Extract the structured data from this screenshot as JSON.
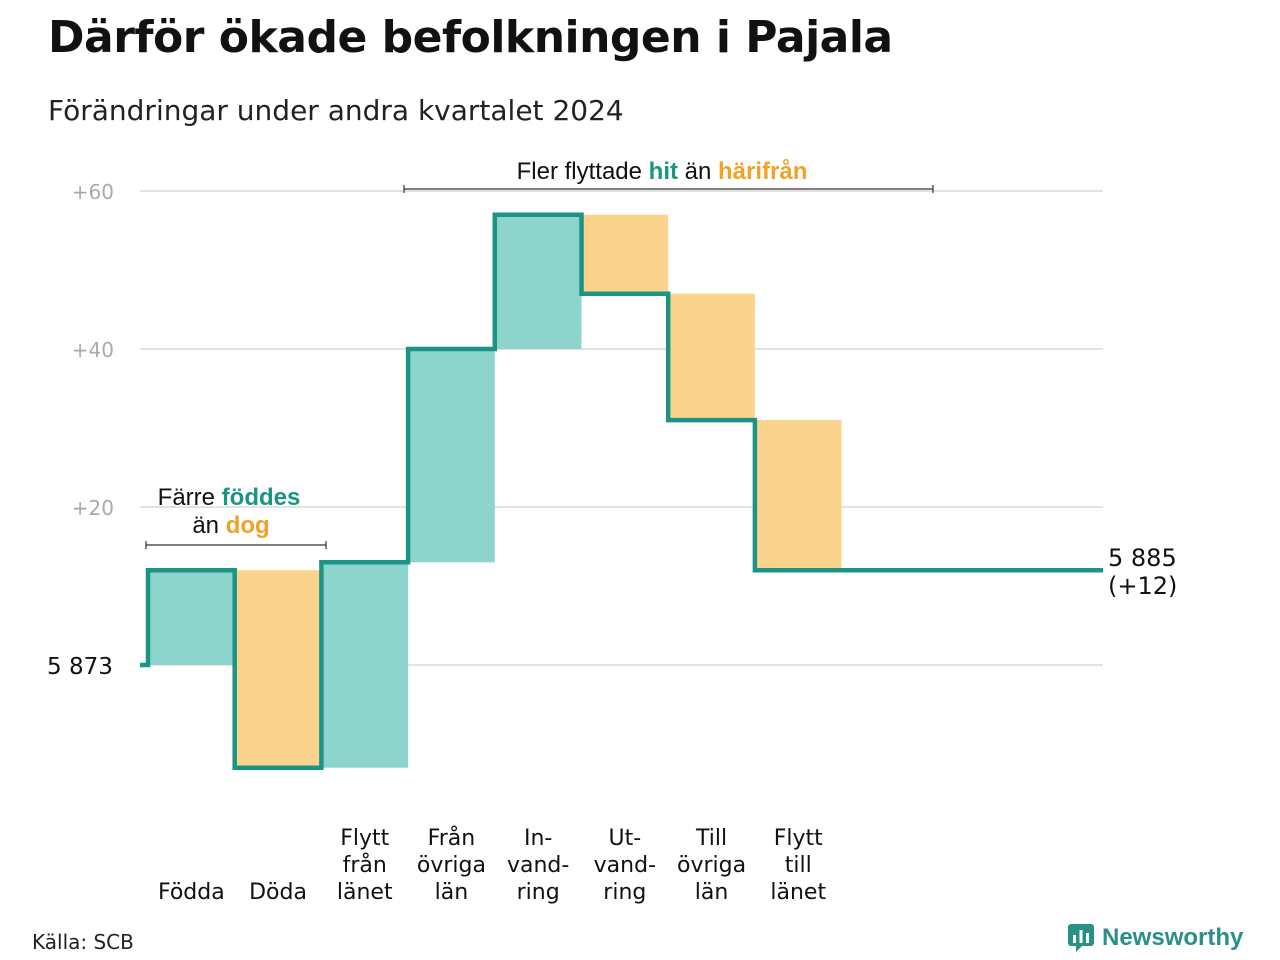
{
  "title": "Därför ökade befolkningen i Pajala",
  "subtitle": "Förändringar under andra kvartalet 2024",
  "source": "Källa: SCB",
  "brand": {
    "name": "Newsworthy",
    "icon": "bar-chart-speech-bubble-icon",
    "color": "#2a8f86"
  },
  "colors": {
    "increase": "#8dd4cc",
    "decrease": "#fad48c",
    "line": "#1b9486",
    "hit": "#1b9486",
    "harifran": "#f0a326",
    "grid": "#e3e3e3",
    "tick": "#aaaaaa"
  },
  "annotations": {
    "natural": {
      "line1_prefix": "Färre ",
      "line1_highlight": "föddes",
      "line2_prefix": "än ",
      "line2_highlight": "dog"
    },
    "migration": {
      "prefix": "Fler flyttade ",
      "highlight1": "hit",
      "middle": " än ",
      "highlight2": "härifrån"
    }
  },
  "chart_data": {
    "type": "waterfall",
    "baseline_label": "5  873",
    "baseline": 0,
    "end_label": [
      "5 885",
      "(+12)"
    ],
    "y_ticks": [
      {
        "value": 20,
        "label": "+20"
      },
      {
        "value": 40,
        "label": "+40"
      },
      {
        "value": 60,
        "label": "+60"
      }
    ],
    "ylim": [
      -20,
      62
    ],
    "steps": [
      {
        "label": [
          "Födda"
        ],
        "change": 12,
        "from": 0,
        "to": 12
      },
      {
        "label": [
          "Döda"
        ],
        "change": -25,
        "from": 12,
        "to": -13
      },
      {
        "label": [
          "Flytt",
          "från",
          "länet"
        ],
        "change": 26,
        "from": -13,
        "to": 13
      },
      {
        "label": [
          "Från",
          "övriga",
          "län"
        ],
        "change": 27,
        "from": 13,
        "to": 40
      },
      {
        "label": [
          "In-",
          "vand-",
          "ring"
        ],
        "change": 17,
        "from": 40,
        "to": 57
      },
      {
        "label": [
          "Ut-",
          "vand-",
          "ring"
        ],
        "change": -10,
        "from": 57,
        "to": 47
      },
      {
        "label": [
          "Till",
          "övriga",
          "län"
        ],
        "change": -16,
        "from": 47,
        "to": 31
      },
      {
        "label": [
          "Flytt",
          "till",
          "länet"
        ],
        "change": -19,
        "from": 31,
        "to": 12
      }
    ],
    "final": 12
  }
}
